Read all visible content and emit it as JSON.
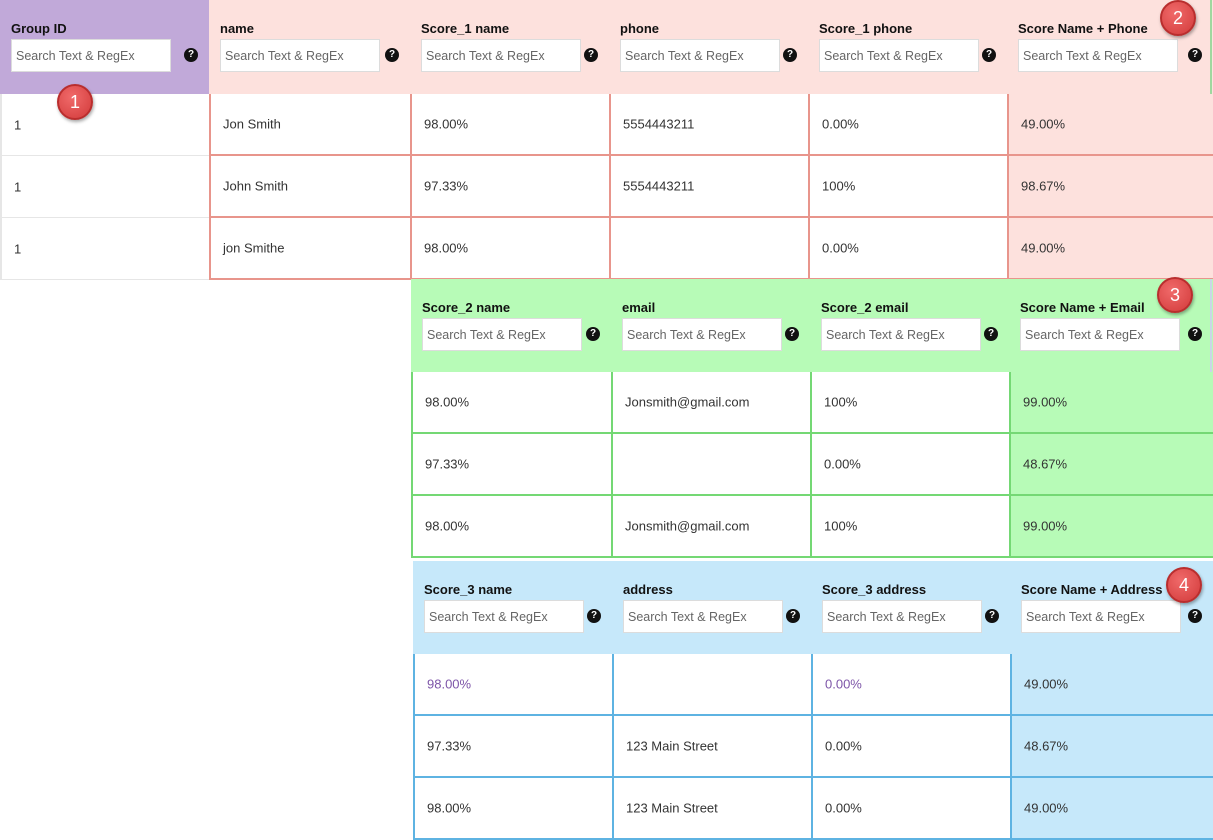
{
  "search_placeholder": "Search Text & RegEx",
  "help_glyph": "?",
  "colors": {
    "group_header": "#c1a9d9",
    "section1_header": "#fde1dd",
    "section1_border": "#e8958c",
    "section2_header": "#b7fbb7",
    "section2_border": "#74d874",
    "section3_header": "#c6e8fa",
    "section3_border": "#5eb3e2",
    "badge": "#d94444"
  },
  "badges": [
    "1",
    "2",
    "3",
    "4"
  ],
  "section1": {
    "headers": [
      "Group ID",
      "name",
      "Score_1 name",
      "phone",
      "Score_1 phone",
      "Score Name + Phone"
    ],
    "rows": [
      [
        "1",
        "Jon Smith",
        "98.00%",
        "5554443211",
        "0.00%",
        "49.00%"
      ],
      [
        "1",
        "John Smith",
        "97.33%",
        "5554443211",
        "100%",
        "98.67%"
      ],
      [
        "1",
        "jon Smithe",
        "98.00%",
        "",
        "0.00%",
        "49.00%"
      ]
    ]
  },
  "section2": {
    "headers": [
      "Score_2 name",
      "email",
      "Score_2 email",
      "Score Name + Email"
    ],
    "rows": [
      [
        "98.00%",
        "Jonsmith@gmail.com",
        "100%",
        "99.00%"
      ],
      [
        "97.33%",
        "",
        "0.00%",
        "48.67%"
      ],
      [
        "98.00%",
        "Jonsmith@gmail.com",
        "100%",
        "99.00%"
      ]
    ]
  },
  "section3": {
    "headers": [
      "Score_3 name",
      "address",
      "Score_3 address",
      "Score Name + Address"
    ],
    "rows": [
      [
        "98.00%",
        "",
        "0.00%",
        "49.00%"
      ],
      [
        "97.33%",
        "123 Main Street",
        "0.00%",
        "48.67%"
      ],
      [
        "98.00%",
        "123 Main Street",
        "0.00%",
        "49.00%"
      ]
    ]
  }
}
